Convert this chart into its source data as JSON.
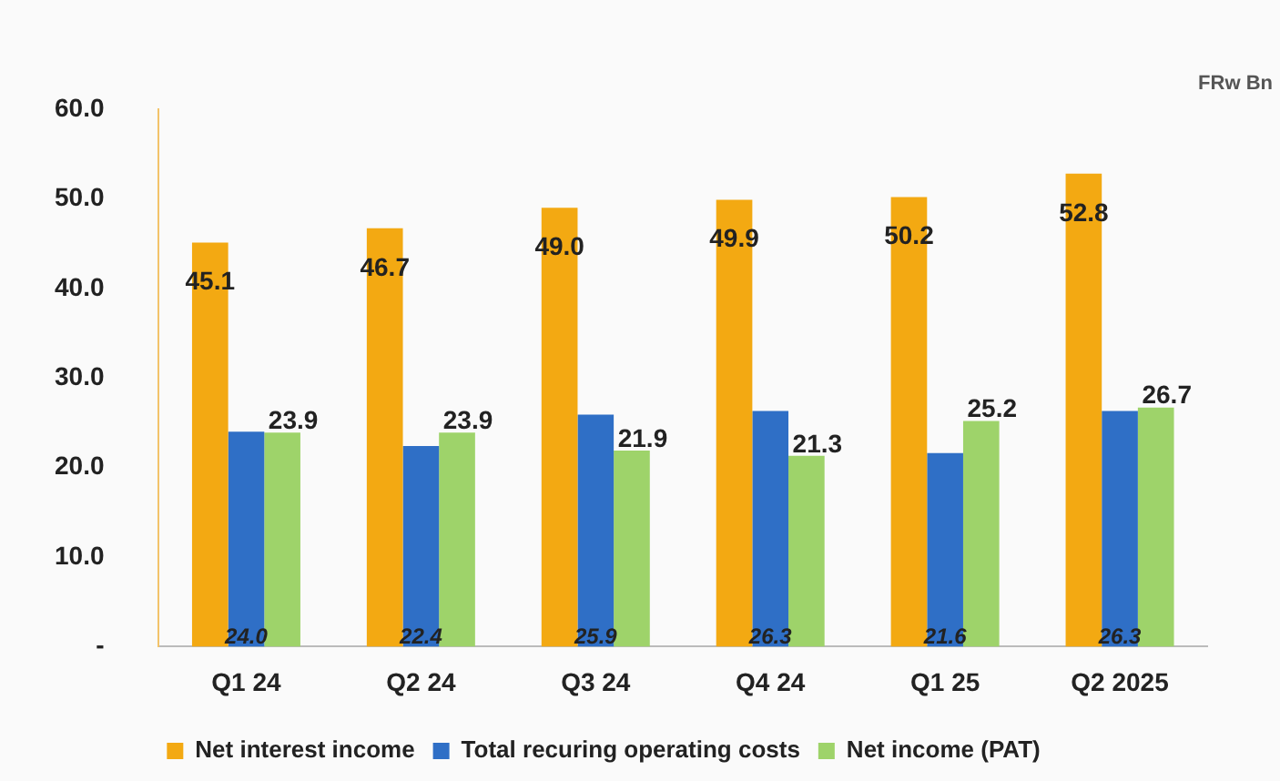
{
  "chart_data": {
    "type": "bar",
    "categories": [
      "Q1 24",
      "Q2 24",
      "Q3 24",
      "Q4 24",
      "Q1 25",
      "Q2 2025"
    ],
    "series": [
      {
        "name": "Net interest income",
        "color": "#f3a912",
        "values": [
          45.1,
          46.7,
          49.0,
          49.9,
          50.2,
          52.8
        ],
        "value_labels": [
          "45.1",
          "46.7",
          "49.0",
          "49.9",
          "50.2",
          "52.8"
        ]
      },
      {
        "name": "Total recuring operating costs",
        "color": "#2f6fc6",
        "values": [
          24.0,
          22.4,
          25.9,
          26.3,
          21.6,
          26.3
        ],
        "value_labels": [
          "24.0",
          "22.4",
          "25.9",
          "26.3",
          "21.6",
          "26.3"
        ]
      },
      {
        "name": "Net income (PAT)",
        "color": "#9ed36a",
        "values": [
          23.9,
          23.9,
          21.9,
          21.3,
          25.2,
          26.7
        ],
        "value_labels": [
          "23.9",
          "23.9",
          "21.9",
          "21.3",
          "25.2",
          "26.7"
        ]
      }
    ],
    "ylim": [
      0,
      60
    ],
    "yticks": [
      {
        "value": 0,
        "label": "-"
      },
      {
        "value": 10,
        "label": "10.0"
      },
      {
        "value": 20,
        "label": "20.0"
      },
      {
        "value": 30,
        "label": "30.0"
      },
      {
        "value": 40,
        "label": "40.0"
      },
      {
        "value": 50,
        "label": "50.0"
      },
      {
        "value": 60,
        "label": "60.0"
      }
    ],
    "grid": false,
    "legend": "bottom",
    "annotations": [
      "FRw Bn"
    ]
  }
}
